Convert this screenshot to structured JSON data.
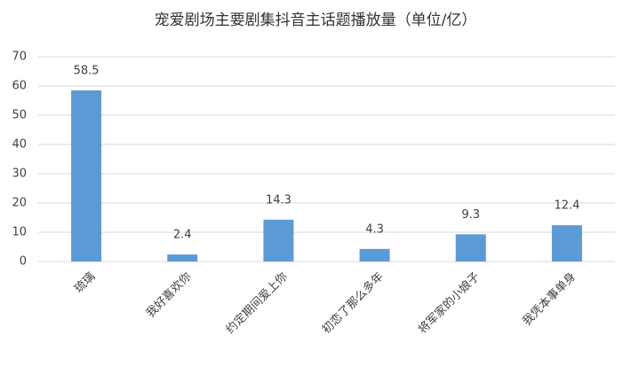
{
  "chart_data": {
    "type": "bar",
    "title": "宠爱剧场主要剧集抖音主话题播放量（单位/亿）",
    "categories": [
      "琉璃",
      "我好喜欢你",
      "约定期间爱上你",
      "初恋了那么多年",
      "将军家的小娘子",
      "我凭本事单身"
    ],
    "values": [
      58.5,
      2.4,
      14.3,
      4.3,
      9.3,
      12.4
    ],
    "color": "#5b9bd5",
    "ylim": [
      0,
      70
    ],
    "yticks": [
      0,
      10,
      20,
      30,
      40,
      50,
      60,
      70
    ],
    "grid": true
  }
}
